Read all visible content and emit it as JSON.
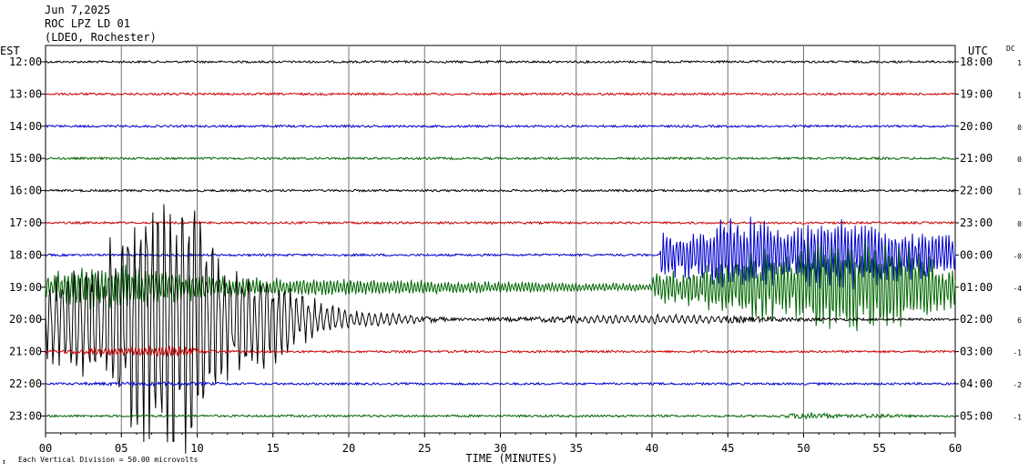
{
  "chart_data": {
    "type": "line",
    "header": {
      "date": "Jun 7,2025",
      "station": "ROC LPZ LD 01",
      "network": "(LDEO, Rochester)"
    },
    "left_axis_title": "EST",
    "right_axis_title": "UTC",
    "dc_title": "DC",
    "xlabel": "TIME (MINUTES)",
    "x_ticks": [
      "00",
      "05",
      "10",
      "15",
      "20",
      "25",
      "30",
      "35",
      "40",
      "45",
      "50",
      "55",
      "60"
    ],
    "xlim": [
      0,
      60
    ],
    "footnote": "Each Vertical Division =    50.00 microvolts",
    "trace_colors": [
      "#000000",
      "#cc0000",
      "#0000cc",
      "#006600"
    ],
    "rows": [
      {
        "est": "12:00",
        "utc": "18:00",
        "dc": "1"
      },
      {
        "est": "13:00",
        "utc": "19:00",
        "dc": "1"
      },
      {
        "est": "14:00",
        "utc": "20:00",
        "dc": "0"
      },
      {
        "est": "15:00",
        "utc": "21:00",
        "dc": "0"
      },
      {
        "est": "16:00",
        "utc": "22:00",
        "dc": "1"
      },
      {
        "est": "17:00",
        "utc": "23:00",
        "dc": "0"
      },
      {
        "est": "18:00",
        "utc": "00:00",
        "dc": "-0"
      },
      {
        "est": "19:00",
        "utc": "01:00",
        "dc": "-4"
      },
      {
        "est": "20:00",
        "utc": "02:00",
        "dc": "6"
      },
      {
        "est": "21:00",
        "utc": "03:00",
        "dc": "-1"
      },
      {
        "est": "22:00",
        "utc": "04:00",
        "dc": "-2"
      },
      {
        "est": "23:00",
        "utc": "05:00",
        "dc": "-1"
      }
    ]
  }
}
